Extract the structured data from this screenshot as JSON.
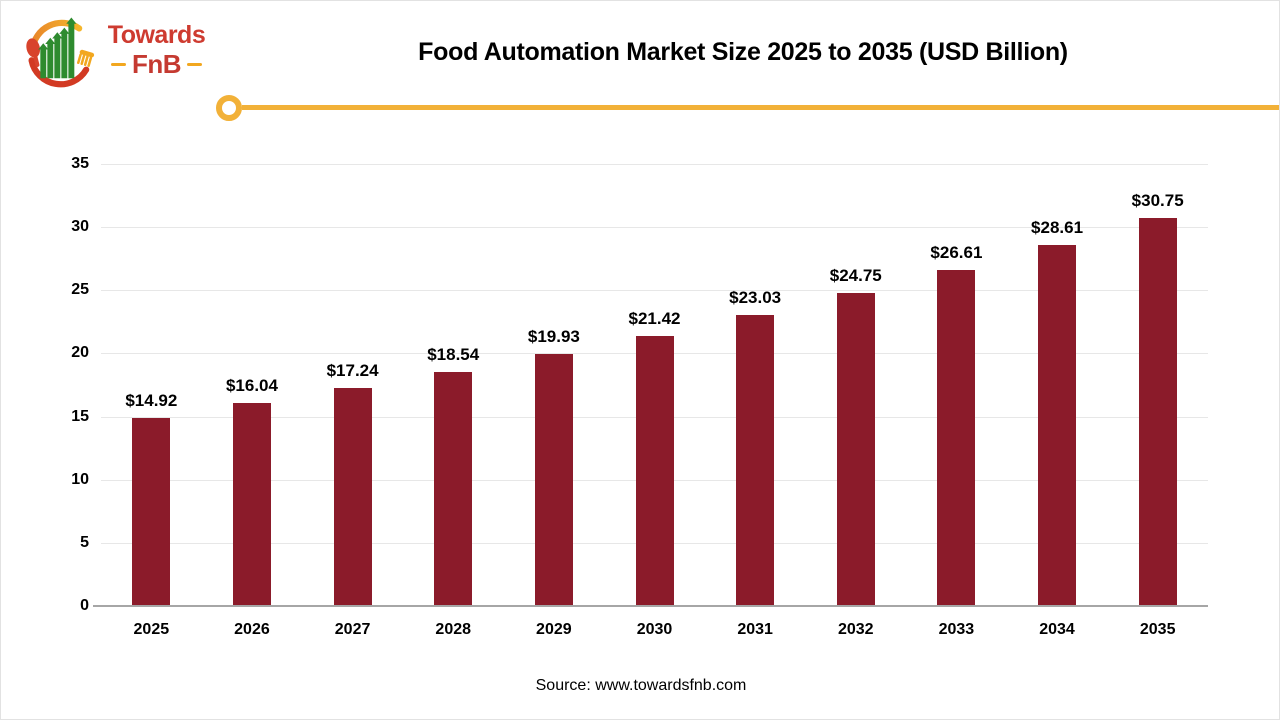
{
  "logo": {
    "name_top": "Towards",
    "name_bottom": "FnB"
  },
  "header": {
    "title": "Food Automation Market Size 2025 to 2035 (USD Billion)"
  },
  "footer": {
    "source": "Source: www.towardsfnb.com"
  },
  "colors": {
    "bar": "#8b1b2a",
    "accent_yellow": "#f2b138",
    "axis_line": "#a6a6a6",
    "gridline": "#e7e7e7",
    "logo_red": "#ce3b30",
    "logo_green": "#2e8b2f",
    "logo_yellow": "#f2a71f"
  },
  "chart_data": {
    "type": "bar",
    "title": "Food Automation Market Size 2025 to 2035 (USD Billion)",
    "categories": [
      "2025",
      "2026",
      "2027",
      "2028",
      "2029",
      "2030",
      "2031",
      "2032",
      "2033",
      "2034",
      "2035"
    ],
    "values": [
      14.92,
      16.04,
      17.24,
      18.54,
      19.93,
      21.42,
      23.03,
      24.75,
      26.61,
      28.61,
      30.75
    ],
    "data_labels": [
      "$14.92",
      "$16.04",
      "$17.24",
      "$18.54",
      "$19.93",
      "$21.42",
      "$23.03",
      "$24.75",
      "$26.61",
      "$28.61",
      "$30.75"
    ],
    "xlabel": "",
    "ylabel": "",
    "ylim": [
      0,
      35
    ],
    "yticks": [
      0,
      5,
      10,
      15,
      20,
      25,
      30,
      35
    ],
    "grid": "horizontal",
    "legend": "none",
    "bar_color": "#8b1b2a"
  }
}
